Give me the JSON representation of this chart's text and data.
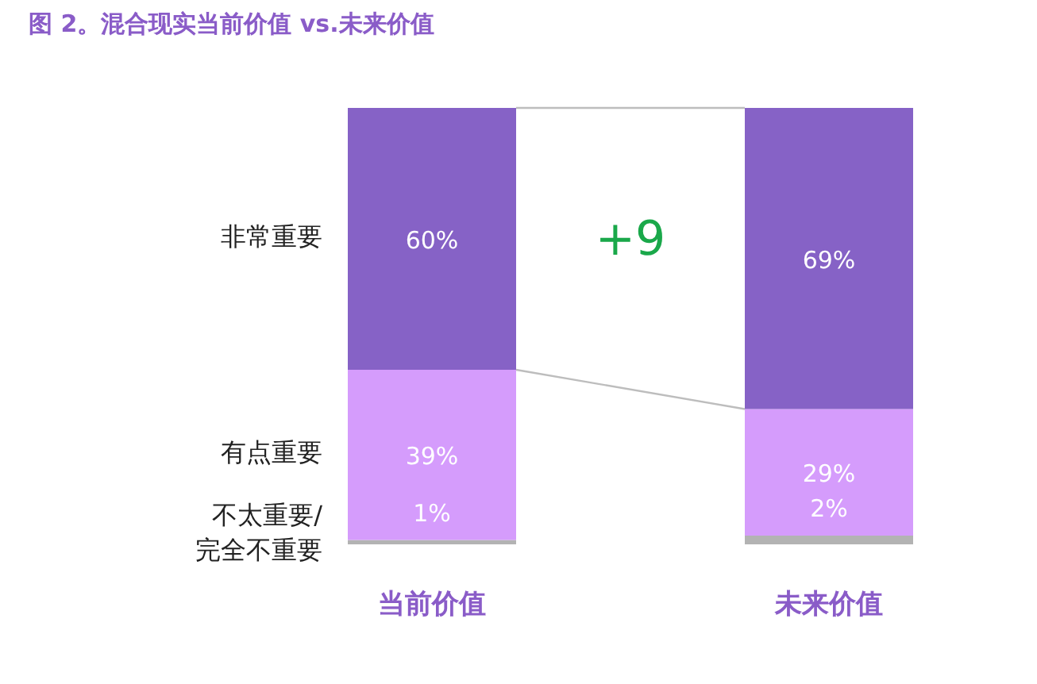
{
  "chart_data": {
    "type": "bar",
    "title": "图 2。混合现实当前价值 vs.未来价值",
    "categories": [
      "当前价值",
      "未来价值"
    ],
    "stacked": true,
    "ylim": [
      0,
      100
    ],
    "tick_labels": "x",
    "data_labels": true,
    "series": [
      {
        "name": "不太重要/完全不重要",
        "color": "#b3b3b3",
        "values": [
          1,
          2
        ],
        "value_labels": [
          "1%",
          "2%"
        ]
      },
      {
        "name": "有点重要",
        "color": "#d59cfc",
        "values": [
          39,
          29
        ],
        "value_labels": [
          "39%",
          "29%"
        ]
      },
      {
        "name": "非常重要",
        "color": "#8662c6",
        "values": [
          60,
          69
        ],
        "value_labels": [
          "60%",
          "69%"
        ]
      }
    ],
    "annotations": [
      "+9"
    ]
  }
}
